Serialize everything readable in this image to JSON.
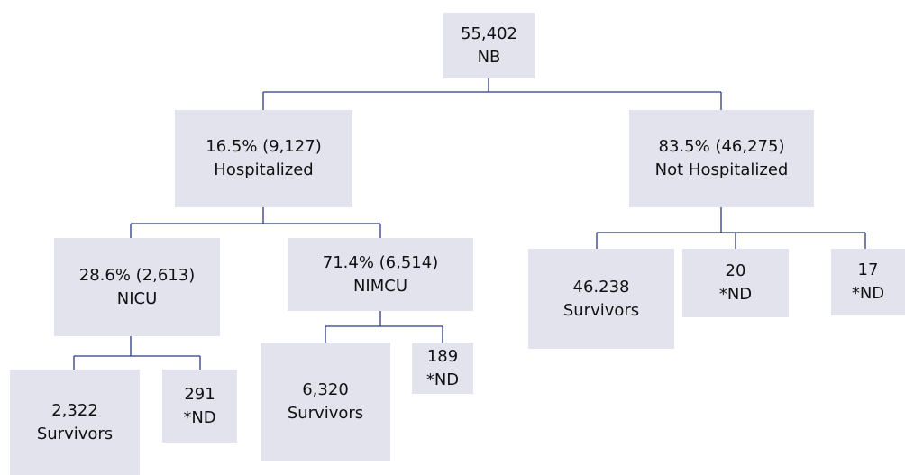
{
  "nodes": [
    {
      "lines": [
        "55,402",
        "NB"
      ]
    },
    {
      "lines": [
        "16.5% (9,127)",
        "Hospitalized"
      ]
    },
    {
      "lines": [
        "83.5% (46,275)",
        "Not Hospitalized"
      ]
    },
    {
      "lines": [
        "28.6% (2,613)",
        "NICU"
      ]
    },
    {
      "lines": [
        "71.4% (6,514)",
        "NIMCU"
      ]
    },
    {
      "lines": [
        "46.238",
        "Survivors"
      ]
    },
    {
      "lines": [
        "20",
        "*ND"
      ]
    },
    {
      "lines": [
        "17",
        "*ND"
      ]
    },
    {
      "lines": [
        "2,322",
        "Survivors"
      ]
    },
    {
      "lines": [
        "291",
        "*ND"
      ]
    },
    {
      "lines": [
        "6,320",
        "Survivors"
      ]
    },
    {
      "lines": [
        "189",
        "*ND"
      ]
    }
  ]
}
